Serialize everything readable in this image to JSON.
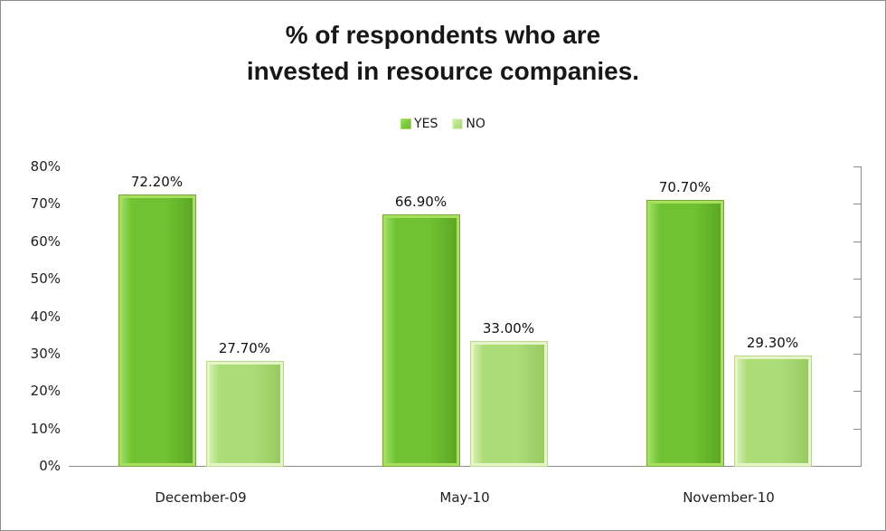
{
  "title": {
    "line1": "% of respondents who are",
    "line2": "invested in resource companies."
  },
  "chart_data": {
    "type": "bar",
    "title": "% of respondents who are invested in resource companies.",
    "categories": [
      "December-09",
      "May-10",
      "November-10"
    ],
    "series": [
      {
        "name": "YES",
        "values": [
          72.2,
          66.9,
          70.7
        ],
        "labels": [
          "72.20%",
          "66.90%",
          "70.70%"
        ],
        "color_light": "#97da5f",
        "color_mid": "#6fc231",
        "color_dark": "#5da726",
        "border": "#a8e05e",
        "edge": "#79a73f"
      },
      {
        "name": "NO",
        "values": [
          27.7,
          33.0,
          29.3
        ],
        "labels": [
          "27.70%",
          "33.00%",
          "29.30%"
        ],
        "color_light": "#d3eeae",
        "color_mid": "#abdc78",
        "color_dark": "#97cb60",
        "border": "#e6f5c8",
        "edge": "#b9d98b"
      }
    ],
    "xlabel": "",
    "ylabel": "",
    "ylim": [
      0,
      80
    ],
    "ytick_step": 10,
    "ytick_labels": [
      "0%",
      "10%",
      "20%",
      "30%",
      "40%",
      "50%",
      "60%",
      "70%",
      "80%"
    ],
    "grid": false,
    "legend_position": "top-center",
    "axis_color": "#8c8c8c",
    "text_color": "#1a1a1a"
  }
}
